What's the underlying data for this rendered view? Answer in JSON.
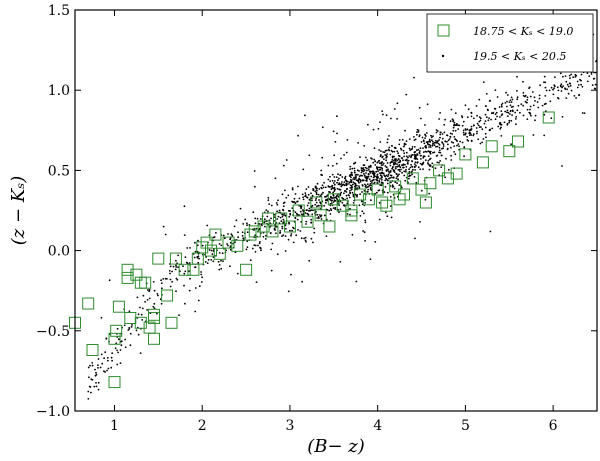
{
  "chart_data": {
    "type": "scatter",
    "xlabel": "(B− z)",
    "ylabel": "(z − Kₛ)",
    "xlim": [
      0.55,
      6.5
    ],
    "ylim": [
      -1.0,
      1.5
    ],
    "x_ticks": [
      1,
      2,
      3,
      4,
      5,
      6
    ],
    "y_ticks": [
      -1.0,
      -0.5,
      0.0,
      0.5,
      1.0,
      1.5
    ],
    "x_tick_labels": [
      "1",
      "2",
      "3",
      "4",
      "5",
      "6"
    ],
    "y_tick_labels": [
      "−1.0",
      "−0.5",
      "0.0",
      "0.5",
      "1.0",
      "1.5"
    ],
    "grid": false,
    "legend_position": "top-right",
    "colors": {
      "bright": "#2e8b2e",
      "faint": "#000000"
    },
    "series": [
      {
        "name": "18.75 < Kₛ < 19.0",
        "marker": "open-square",
        "x": [
          0.55,
          0.7,
          0.75,
          1.0,
          1.02,
          1.05,
          1.15,
          1.15,
          1.18,
          1.25,
          1.3,
          1.35,
          1.4,
          1.45,
          1.45,
          1.5,
          1.6,
          1.65,
          1.7,
          1.8,
          1.9,
          1.95,
          2.0,
          2.05,
          2.1,
          2.15,
          2.2,
          2.3,
          2.4,
          2.5,
          2.55,
          2.6,
          2.7,
          2.75,
          2.8,
          2.9,
          3.0,
          3.1,
          3.2,
          3.3,
          3.35,
          3.5,
          3.6,
          3.7,
          3.8,
          3.9,
          4.0,
          4.05,
          4.1,
          4.2,
          4.3,
          4.4,
          4.5,
          4.6,
          4.7,
          4.9,
          5.0,
          5.2,
          5.3,
          5.5,
          5.6,
          5.95,
          1.0,
          1.3,
          1.45,
          3.45,
          3.7,
          4.25,
          4.55,
          4.8
        ],
        "y": [
          -0.45,
          -0.33,
          -0.62,
          -0.82,
          -0.5,
          -0.35,
          -0.12,
          -0.17,
          -0.42,
          -0.15,
          -0.45,
          -0.2,
          -0.48,
          -0.42,
          -0.4,
          -0.05,
          -0.28,
          -0.45,
          -0.05,
          -0.12,
          -0.12,
          -0.05,
          0.02,
          0.05,
          0.0,
          0.1,
          -0.02,
          0.05,
          0.03,
          -0.12,
          0.1,
          0.12,
          0.15,
          0.2,
          0.12,
          0.2,
          0.15,
          0.25,
          0.18,
          0.3,
          0.22,
          0.32,
          0.28,
          0.25,
          0.35,
          0.32,
          0.38,
          0.3,
          0.28,
          0.4,
          0.35,
          0.45,
          0.38,
          0.42,
          0.5,
          0.48,
          0.6,
          0.55,
          0.65,
          0.62,
          0.68,
          0.83,
          -0.55,
          -0.2,
          -0.55,
          0.15,
          0.22,
          0.32,
          0.3,
          0.45
        ]
      },
      {
        "name": "19.5 < Kₛ < 20.5",
        "marker": "dot",
        "x_range": [
          0.7,
          6.5
        ],
        "trend": {
          "slope": 0.26,
          "intercept": -0.82,
          "kink_x": 1.7,
          "kink_slope_low": 0.7,
          "scatter": 0.07
        },
        "count": 1800
      }
    ]
  }
}
